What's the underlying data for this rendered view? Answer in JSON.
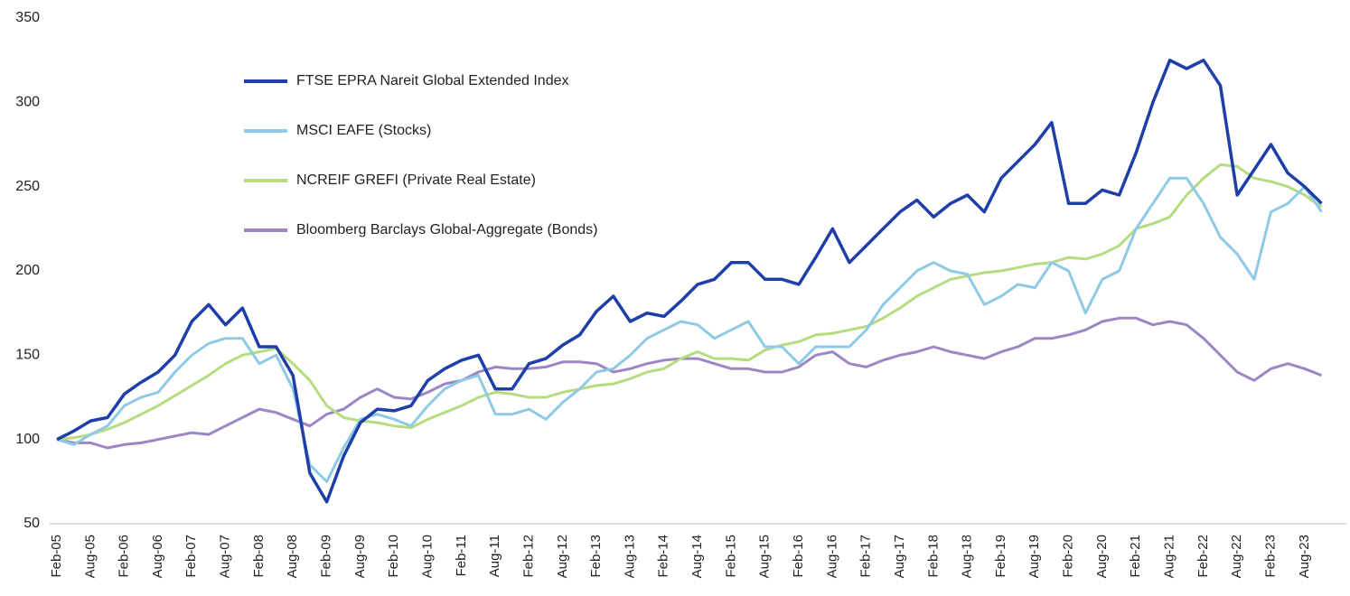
{
  "chart_data": {
    "type": "line",
    "categories": [
      "Feb-05",
      null,
      "Aug-05",
      null,
      "Feb-06",
      null,
      "Aug-06",
      null,
      "Feb-07",
      null,
      "Aug-07",
      null,
      "Feb-08",
      null,
      "Aug-08",
      null,
      "Feb-09",
      null,
      "Aug-09",
      null,
      "Feb-10",
      null,
      "Aug-10",
      null,
      "Feb-11",
      null,
      "Aug-11",
      null,
      "Feb-12",
      null,
      "Aug-12",
      null,
      "Feb-13",
      null,
      "Aug-13",
      null,
      "Feb-14",
      null,
      "Aug-14",
      null,
      "Feb-15",
      null,
      "Aug-15",
      null,
      "Feb-16",
      null,
      "Aug-16",
      null,
      "Feb-17",
      null,
      "Aug-17",
      null,
      "Feb-18",
      null,
      "Aug-18",
      null,
      "Feb-19",
      null,
      "Aug-19",
      null,
      "Feb-20",
      null,
      "Aug-20",
      null,
      "Feb-21",
      null,
      "Aug-21",
      null,
      "Feb-22",
      null,
      "Aug-22",
      null,
      "Feb-23",
      null,
      "Aug-23",
      null
    ],
    "series": [
      {
        "name": "FTSE EPRA Nareit Global Extended Index",
        "color": "#1f3fa8",
        "values": [
          100,
          105,
          111,
          113,
          127,
          134,
          140,
          150,
          170,
          180,
          168,
          178,
          155,
          155,
          138,
          80,
          63,
          90,
          110,
          118,
          117,
          120,
          135,
          142,
          147,
          150,
          130,
          130,
          145,
          148,
          156,
          162,
          176,
          185,
          170,
          175,
          173,
          182,
          192,
          195,
          205,
          205,
          195,
          195,
          192,
          208,
          225,
          205,
          215,
          225,
          235,
          242,
          232,
          240,
          245,
          235,
          255,
          265,
          275,
          288,
          240,
          240,
          248,
          245,
          270,
          300,
          325,
          320,
          325,
          310,
          245,
          260,
          275,
          258,
          250,
          240
        ]
      },
      {
        "name": "MSCI EAFE (Stocks)",
        "color": "#8ecae6",
        "values": [
          100,
          97,
          103,
          108,
          120,
          125,
          128,
          140,
          150,
          157,
          160,
          160,
          145,
          150,
          130,
          85,
          75,
          95,
          112,
          115,
          112,
          108,
          120,
          130,
          135,
          138,
          115,
          115,
          118,
          112,
          122,
          130,
          140,
          142,
          150,
          160,
          165,
          170,
          168,
          160,
          165,
          170,
          155,
          155,
          145,
          155,
          155,
          155,
          165,
          180,
          190,
          200,
          205,
          200,
          198,
          180,
          185,
          192,
          190,
          205,
          200,
          175,
          195,
          200,
          225,
          240,
          255,
          255,
          240,
          220,
          210,
          195,
          235,
          240,
          250,
          235
        ]
      },
      {
        "name": "NCREIF GREFI (Private Real Estate)",
        "color": "#b5dc7f",
        "values": [
          100,
          101,
          103,
          106,
          110,
          115,
          120,
          126,
          132,
          138,
          145,
          150,
          152,
          154,
          145,
          135,
          120,
          113,
          111,
          110,
          108,
          107,
          112,
          116,
          120,
          125,
          128,
          127,
          125,
          125,
          128,
          130,
          132,
          133,
          136,
          140,
          142,
          148,
          152,
          148,
          148,
          147,
          153,
          156,
          158,
          162,
          163,
          165,
          167,
          172,
          178,
          185,
          190,
          195,
          197,
          199,
          200,
          202,
          204,
          205,
          208,
          207,
          210,
          215,
          225,
          228,
          232,
          245,
          255,
          263,
          262,
          255,
          253,
          250,
          245,
          238
        ]
      },
      {
        "name": "Bloomberg Barclays Global-Aggregate (Bonds)",
        "color": "#9b87c4",
        "values": [
          100,
          98,
          98,
          95,
          97,
          98,
          100,
          102,
          104,
          103,
          108,
          113,
          118,
          116,
          112,
          108,
          115,
          118,
          125,
          130,
          125,
          124,
          128,
          133,
          135,
          140,
          143,
          142,
          142,
          143,
          146,
          146,
          145,
          140,
          142,
          145,
          147,
          148,
          148,
          145,
          142,
          142,
          140,
          140,
          143,
          150,
          152,
          145,
          143,
          147,
          150,
          152,
          155,
          152,
          150,
          148,
          152,
          155,
          160,
          160,
          162,
          165,
          170,
          172,
          172,
          168,
          170,
          168,
          160,
          150,
          140,
          135,
          142,
          145,
          142,
          138
        ]
      }
    ],
    "ylim": [
      50,
      350
    ],
    "yticks": [
      50,
      100,
      150,
      200,
      250,
      300,
      350
    ],
    "legend": "upper left",
    "grid": false
  }
}
